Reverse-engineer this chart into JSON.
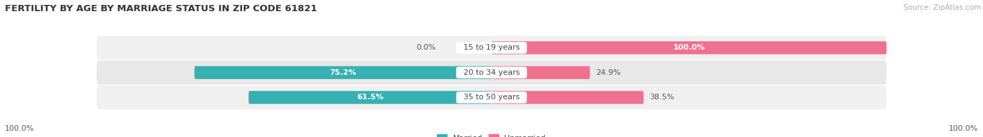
{
  "title": "FERTILITY BY AGE BY MARRIAGE STATUS IN ZIP CODE 61821",
  "source": "Source: ZipAtlas.com",
  "categories": [
    "15 to 19 years",
    "20 to 34 years",
    "35 to 50 years"
  ],
  "married": [
    0.0,
    75.2,
    61.5
  ],
  "unmarried": [
    100.0,
    24.9,
    38.5
  ],
  "married_color": "#36b0b0",
  "unmarried_color": "#f07090",
  "row_bg_color_odd": "#f0f0f0",
  "row_bg_color_even": "#e8e8e8",
  "label_bg_color": "#ffffff",
  "title_fontsize": 9.5,
  "source_fontsize": 7.5,
  "bar_label_fontsize": 8,
  "category_fontsize": 8,
  "legend_fontsize": 8,
  "bar_height": 0.52,
  "figure_bg": "#ffffff",
  "married_label_colors": [
    "#555555",
    "#ffffff",
    "#ffffff"
  ],
  "unmarried_label_colors": [
    "#ffffff",
    "#555555",
    "#555555"
  ]
}
